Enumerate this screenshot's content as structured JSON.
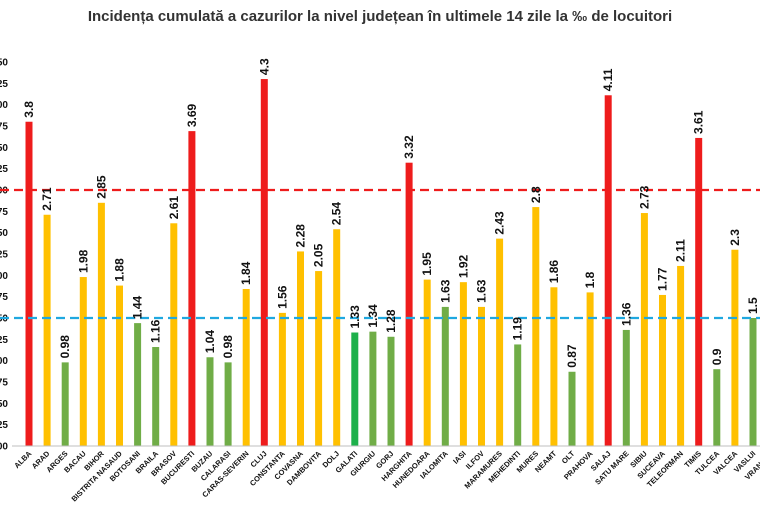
{
  "chart_data": {
    "type": "bar",
    "title": "Incidența cumulată a cazurilor la nivel județean în ultimele 14 zile la ‰ de locuitori",
    "ylim": [
      0,
      4.5
    ],
    "ytick_step": 0.25,
    "grid": false,
    "legend": "none",
    "categories": [
      "ALBA",
      "ARAD",
      "ARGES",
      "BACAU",
      "BIHOR",
      "BISTRITA NASAUD",
      "BOTOSANI",
      "BRAILA",
      "BRASOV",
      "BUCURESTI",
      "BUZAU",
      "CALARASI",
      "CARAS-SEVERIN",
      "CLUJ",
      "CONSTANTA",
      "COVASNA",
      "DAMBOVITA",
      "DOLJ",
      "GALATI",
      "GIURGIU",
      "GORJ",
      "HARGHITA",
      "HUNEDOARA",
      "IALOMITA",
      "IASI",
      "ILFOV",
      "MARAMURES",
      "MEHEDINTI",
      "MURES",
      "NEAMT",
      "OLT",
      "PRAHOVA",
      "SALAJ",
      "SATU MARE",
      "SIBIU",
      "SUCEAVA",
      "TELEORMAN",
      "TIMIS",
      "TULCEA",
      "VALCEA",
      "VASLUI",
      "VRANCEA"
    ],
    "values": [
      3.8,
      2.71,
      0.98,
      1.98,
      2.85,
      1.88,
      1.44,
      1.16,
      2.61,
      3.69,
      1.04,
      0.98,
      1.84,
      4.3,
      1.56,
      2.28,
      2.05,
      2.54,
      1.33,
      1.34,
      1.28,
      3.32,
      1.95,
      1.63,
      1.92,
      1.63,
      2.43,
      1.19,
      2.8,
      1.86,
      0.87,
      1.8,
      4.11,
      1.36,
      2.73,
      1.77,
      2.11,
      3.61,
      0.9,
      2.3,
      1.5,
      null
    ],
    "data_labels": [
      "3.8",
      "2.71",
      "0.98",
      "1.98",
      "2.85",
      "1.88",
      "1.44",
      "1.16",
      "2.61",
      "3.69",
      "1.04",
      "0.98",
      "1.84",
      "4.3",
      "1.56",
      "2.28",
      "2.05",
      "2.54",
      "1.33",
      "1.34",
      "1.28",
      "3.32",
      "1.95",
      "1.63",
      "1.92",
      "1.63",
      "2.43",
      "1.19",
      "2.8",
      "1.86",
      "0.87",
      "1.8",
      "4.11",
      "1.36",
      "2.73",
      "1.77",
      "2.11",
      "3.61",
      "0.9",
      "2.3",
      "1.5",
      ""
    ],
    "bar_colors": [
      "red",
      "yellow",
      "green",
      "yellow",
      "yellow",
      "yellow",
      "green",
      "green",
      "yellow",
      "red",
      "green",
      "green",
      "yellow",
      "red",
      "yellow",
      "yellow",
      "yellow",
      "yellow",
      "brightgreen",
      "green",
      "green",
      "red",
      "yellow",
      "green",
      "yellow",
      "yellow",
      "yellow",
      "green",
      "yellow",
      "yellow",
      "green",
      "yellow",
      "red",
      "green",
      "yellow",
      "yellow",
      "yellow",
      "red",
      "green",
      "yellow",
      "green",
      "yellow"
    ],
    "palette": {
      "red": "#ee1c1c",
      "yellow": "#ffc000",
      "green": "#70ad47",
      "brightgreen": "#1db04b"
    },
    "thresholds": [
      {
        "value": 3.0,
        "color": "#ee1c1c",
        "style": "dashed"
      },
      {
        "value": 1.5,
        "color": "#1fa8e0",
        "style": "dashed"
      }
    ]
  }
}
